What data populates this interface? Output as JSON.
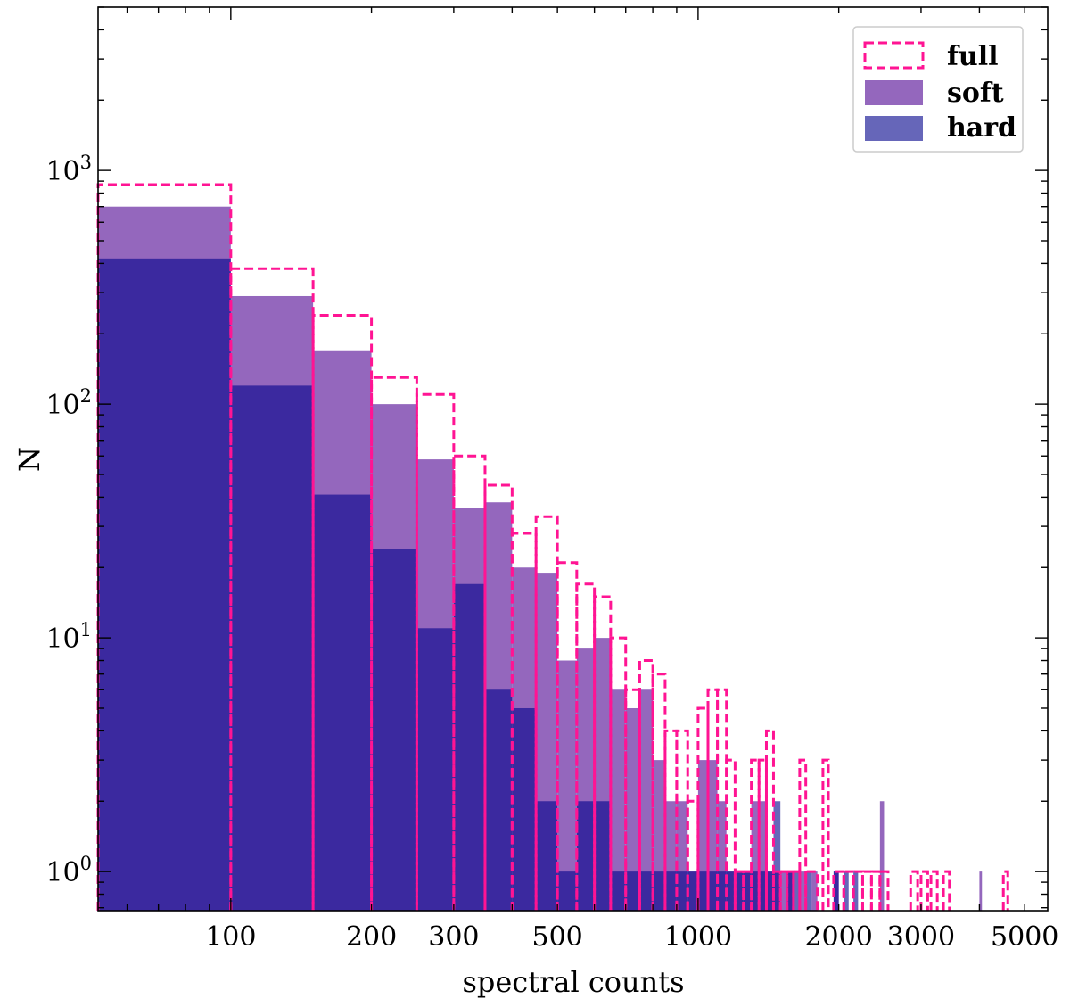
{
  "chart_data": {
    "type": "histogram",
    "xlabel": "spectral counts",
    "ylabel": "N",
    "xscale": "log",
    "yscale": "log",
    "xlim": [
      52,
      5600
    ],
    "ylim": [
      0.68,
      5000
    ],
    "x_ticks": [
      {
        "value": 100,
        "label": "100"
      },
      {
        "value": 200,
        "label": "200"
      },
      {
        "value": 300,
        "label": "300"
      },
      {
        "value": 500,
        "label": "500"
      },
      {
        "value": 1000,
        "label": "1000"
      },
      {
        "value": 2000,
        "label": "2000"
      },
      {
        "value": 3000,
        "label": "3000"
      },
      {
        "value": 5000,
        "label": "5000"
      }
    ],
    "y_ticks": [
      {
        "value": 1,
        "base": "10",
        "exp": "0"
      },
      {
        "value": 10,
        "base": "10",
        "exp": "1"
      },
      {
        "value": 100,
        "base": "10",
        "exp": "2"
      },
      {
        "value": 1000,
        "base": "10",
        "exp": "3"
      }
    ],
    "legend_position": "top-right",
    "series": [
      {
        "name": "full",
        "style": "dashed-step",
        "color": "#ff1493",
        "bins": [
          [
            50,
            100,
            870
          ],
          [
            100,
            150,
            380
          ],
          [
            150,
            200,
            240
          ],
          [
            200,
            250,
            130
          ],
          [
            250,
            300,
            110
          ],
          [
            300,
            350,
            60
          ],
          [
            350,
            400,
            45
          ],
          [
            400,
            450,
            28
          ],
          [
            450,
            500,
            33
          ],
          [
            500,
            550,
            21
          ],
          [
            550,
            600,
            17
          ],
          [
            600,
            650,
            15
          ],
          [
            650,
            700,
            10
          ],
          [
            700,
            750,
            6
          ],
          [
            750,
            800,
            8
          ],
          [
            800,
            850,
            7
          ],
          [
            850,
            900,
            4
          ],
          [
            900,
            950,
            4
          ],
          [
            950,
            1000,
            2
          ],
          [
            1000,
            1050,
            5
          ],
          [
            1050,
            1100,
            6
          ],
          [
            1100,
            1150,
            6
          ],
          [
            1150,
            1200,
            3
          ],
          [
            1200,
            1250,
            1
          ],
          [
            1250,
            1300,
            1
          ],
          [
            1300,
            1350,
            3
          ],
          [
            1350,
            1400,
            3
          ],
          [
            1400,
            1450,
            4
          ],
          [
            1450,
            1500,
            1
          ],
          [
            1500,
            1550,
            1
          ],
          [
            1550,
            1600,
            1
          ],
          [
            1600,
            1650,
            1
          ],
          [
            1650,
            1700,
            3
          ],
          [
            1700,
            1800,
            1
          ],
          [
            1850,
            1900,
            3
          ],
          [
            1950,
            2050,
            1
          ],
          [
            2050,
            2150,
            1
          ],
          [
            2150,
            2250,
            1
          ],
          [
            2250,
            2350,
            1
          ],
          [
            2350,
            2450,
            1
          ],
          [
            2450,
            2550,
            1
          ],
          [
            2850,
            2950,
            1
          ],
          [
            3000,
            3100,
            1
          ],
          [
            3150,
            3250,
            1
          ],
          [
            3350,
            3450,
            1
          ],
          [
            4500,
            4600,
            1
          ]
        ]
      },
      {
        "name": "soft",
        "style": "filled",
        "color": "#9467bd",
        "bins": [
          [
            50,
            100,
            700
          ],
          [
            100,
            150,
            290
          ],
          [
            150,
            200,
            170
          ],
          [
            200,
            250,
            100
          ],
          [
            250,
            300,
            58
          ],
          [
            300,
            350,
            36
          ],
          [
            350,
            400,
            38
          ],
          [
            400,
            450,
            20
          ],
          [
            450,
            500,
            19
          ],
          [
            500,
            550,
            8
          ],
          [
            550,
            600,
            9
          ],
          [
            600,
            650,
            10
          ],
          [
            650,
            700,
            6
          ],
          [
            700,
            750,
            5
          ],
          [
            750,
            800,
            6
          ],
          [
            800,
            850,
            3
          ],
          [
            850,
            900,
            2
          ],
          [
            900,
            950,
            2
          ],
          [
            950,
            1000,
            1
          ],
          [
            1000,
            1050,
            3
          ],
          [
            1050,
            1100,
            3
          ],
          [
            1100,
            1150,
            2
          ],
          [
            1150,
            1200,
            1
          ],
          [
            1200,
            1250,
            1
          ],
          [
            1250,
            1300,
            1
          ],
          [
            1300,
            1350,
            2
          ],
          [
            1350,
            1400,
            2
          ],
          [
            1400,
            1450,
            1
          ],
          [
            1450,
            1500,
            1
          ],
          [
            1500,
            1550,
            1
          ],
          [
            1550,
            1600,
            1
          ],
          [
            1650,
            1700,
            1
          ],
          [
            1750,
            1800,
            1
          ],
          [
            1950,
            2000,
            1
          ],
          [
            2450,
            2500,
            2
          ],
          [
            4000,
            4050,
            1
          ]
        ]
      },
      {
        "name": "hard",
        "style": "filled",
        "color": "#00008b",
        "bins": [
          [
            50,
            100,
            420
          ],
          [
            100,
            150,
            120
          ],
          [
            150,
            200,
            41
          ],
          [
            200,
            250,
            24
          ],
          [
            250,
            300,
            11
          ],
          [
            300,
            350,
            17
          ],
          [
            350,
            400,
            6
          ],
          [
            400,
            450,
            5
          ],
          [
            450,
            500,
            2
          ],
          [
            500,
            550,
            1
          ],
          [
            550,
            600,
            2
          ],
          [
            600,
            650,
            2
          ],
          [
            650,
            700,
            1
          ],
          [
            700,
            750,
            1
          ],
          [
            750,
            800,
            1
          ],
          [
            800,
            850,
            1
          ],
          [
            850,
            900,
            1
          ],
          [
            900,
            950,
            1
          ],
          [
            950,
            1000,
            1
          ],
          [
            1000,
            1050,
            1
          ],
          [
            1050,
            1100,
            1
          ],
          [
            1100,
            1150,
            1
          ],
          [
            1150,
            1200,
            1
          ],
          [
            1200,
            1250,
            1
          ],
          [
            1250,
            1300,
            1
          ],
          [
            1300,
            1350,
            1
          ],
          [
            1350,
            1400,
            1
          ],
          [
            1400,
            1450,
            1
          ],
          [
            1450,
            1500,
            2
          ],
          [
            1550,
            1600,
            1
          ],
          [
            1600,
            1650,
            1
          ],
          [
            1700,
            1750,
            1
          ],
          [
            1950,
            2000,
            1
          ],
          [
            2050,
            2100,
            1
          ],
          [
            2150,
            2200,
            1
          ]
        ]
      }
    ]
  }
}
